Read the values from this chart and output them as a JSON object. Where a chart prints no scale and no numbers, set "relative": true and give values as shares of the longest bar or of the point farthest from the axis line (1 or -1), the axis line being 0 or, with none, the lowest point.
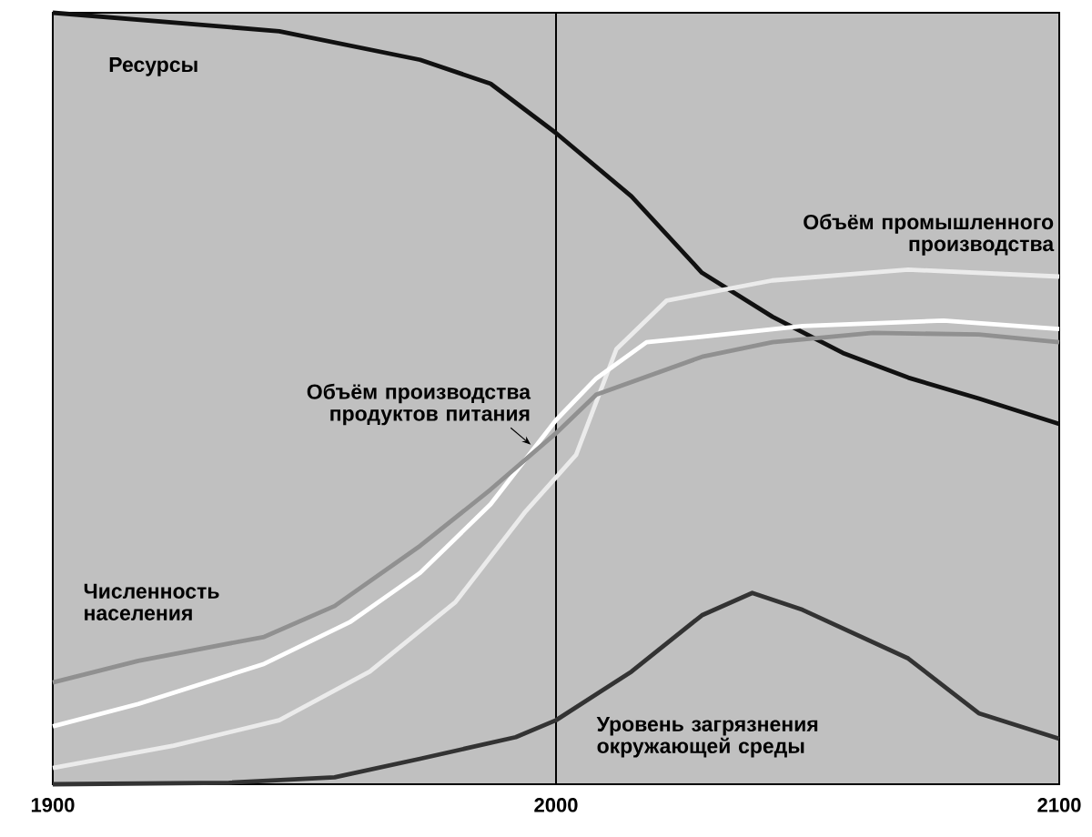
{
  "chart_data": {
    "type": "line",
    "relative": true,
    "xlim": [
      1900,
      2100
    ],
    "xticks": [
      1900,
      2000,
      2100
    ],
    "ref_lines": [
      {
        "axis": "x",
        "value": 2000,
        "color": "#000000"
      }
    ],
    "series": [
      {
        "name": "Ресурсы",
        "color": "#111111",
        "x": [
          1900,
          1945,
          1973,
          1987,
          2000,
          2015,
          2029,
          2043,
          2057,
          2070,
          2084,
          2100
        ],
        "values": [
          1.0,
          0.976,
          0.939,
          0.908,
          0.844,
          0.762,
          0.663,
          0.606,
          0.559,
          0.527,
          0.5,
          0.467
        ]
      },
      {
        "name": "Объём промышленного производства",
        "color": "#ebebeb",
        "x": [
          1900,
          1924,
          1945,
          1963,
          1980,
          1994,
          2004,
          2012,
          2022,
          2043,
          2070,
          2100
        ],
        "values": [
          0.021,
          0.05,
          0.083,
          0.146,
          0.236,
          0.354,
          0.427,
          0.564,
          0.627,
          0.653,
          0.667,
          0.658
        ]
      },
      {
        "name": "Объём производства продуктов питания",
        "color": "#ffffff",
        "x": [
          1900,
          1917,
          1942,
          1959,
          1973,
          1987,
          2000,
          2008,
          2018,
          2029,
          2049,
          2077,
          2100
        ],
        "values": [
          0.075,
          0.104,
          0.156,
          0.21,
          0.274,
          0.363,
          0.472,
          0.526,
          0.573,
          0.58,
          0.594,
          0.601,
          0.59
        ]
      },
      {
        "name": "Численность населения",
        "color": "#909090",
        "x": [
          1900,
          1917,
          1942,
          1956,
          1973,
          1987,
          2000,
          2008,
          2029,
          2043,
          2063,
          2084,
          2100
        ],
        "values": [
          0.132,
          0.16,
          0.191,
          0.231,
          0.309,
          0.382,
          0.455,
          0.505,
          0.554,
          0.573,
          0.585,
          0.583,
          0.573
        ]
      },
      {
        "name": "Уровень загрязнения окружающей среды",
        "color": "#333333",
        "x": [
          1900,
          1935,
          1956,
          1973,
          1992,
          2000,
          2015,
          2029,
          2039,
          2049,
          2070,
          2084,
          2100
        ],
        "values": [
          0,
          0.002,
          0.009,
          0.033,
          0.061,
          0.083,
          0.146,
          0.219,
          0.248,
          0.226,
          0.163,
          0.092,
          0.059
        ]
      }
    ]
  }
}
